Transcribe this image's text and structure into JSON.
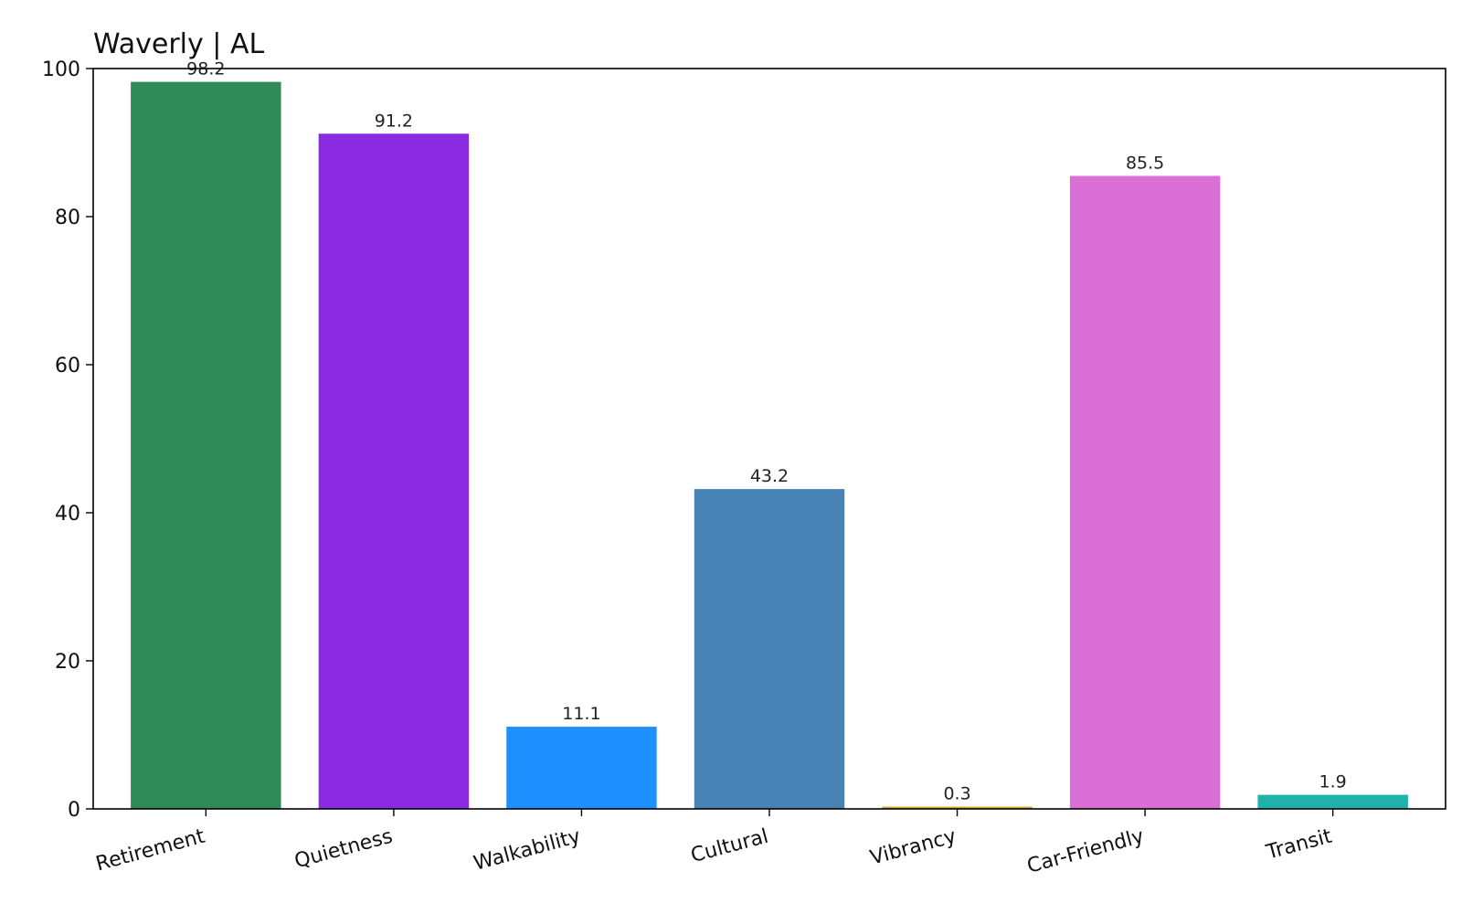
{
  "chart_data": {
    "type": "bar",
    "title": "Waverly | AL",
    "xlabel": "",
    "ylabel": "",
    "ylim": [
      0,
      100
    ],
    "yticks": [
      0,
      20,
      40,
      60,
      80,
      100
    ],
    "categories": [
      "Retirement",
      "Quietness",
      "Walkability",
      "Cultural",
      "Vibrancy",
      "Car-Friendly",
      "Transit"
    ],
    "values": [
      98.2,
      91.2,
      11.1,
      43.2,
      0.3,
      85.5,
      1.9
    ],
    "value_labels": [
      "98.2",
      "91.2",
      "11.1",
      "43.2",
      "0.3",
      "85.5",
      "1.9"
    ],
    "colors": [
      "#2e8b57",
      "#8a2be2",
      "#1e90ff",
      "#4682b4",
      "#daa520",
      "#da70d6",
      "#20b2aa"
    ],
    "grid": false,
    "legend": "none"
  }
}
